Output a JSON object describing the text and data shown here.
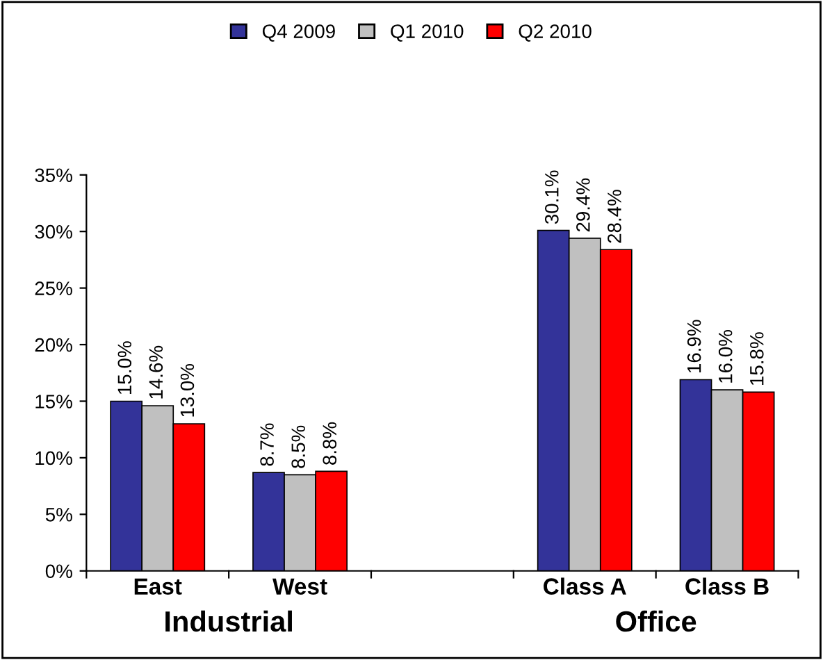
{
  "chart_data": {
    "type": "bar",
    "categories": [
      "East",
      "West",
      null,
      "Class A",
      "Class B"
    ],
    "series": [
      {
        "name": "Q4 2009",
        "color": "#333399",
        "values": [
          15.0,
          8.7,
          null,
          30.1,
          16.9
        ],
        "value_labels": [
          "15.0%",
          "8.7%",
          null,
          "30.1%",
          "16.9%"
        ]
      },
      {
        "name": "Q1 2010",
        "color": "#c0c0c0",
        "values": [
          14.6,
          8.5,
          null,
          29.4,
          16.0
        ],
        "value_labels": [
          "14.6%",
          "8.5%",
          null,
          "29.4%",
          "16.0%"
        ]
      },
      {
        "name": "Q2 2010",
        "color": "#ff0000",
        "values": [
          13.0,
          8.8,
          null,
          28.4,
          15.8
        ],
        "value_labels": [
          "13.0%",
          "8.8%",
          null,
          "28.4%",
          "15.8%"
        ]
      }
    ],
    "ylim": [
      0,
      35
    ],
    "yticks": [
      {
        "value": 0,
        "label": "0%"
      },
      {
        "value": 5,
        "label": "5%"
      },
      {
        "value": 10,
        "label": "10%"
      },
      {
        "value": 15,
        "label": "15%"
      },
      {
        "value": 20,
        "label": "20%"
      },
      {
        "value": 25,
        "label": "25%"
      },
      {
        "value": 30,
        "label": "30%"
      },
      {
        "value": 35,
        "label": "35%"
      }
    ],
    "annotations": [
      "Industrial",
      "Office"
    ],
    "legend": "top",
    "grid": false
  }
}
